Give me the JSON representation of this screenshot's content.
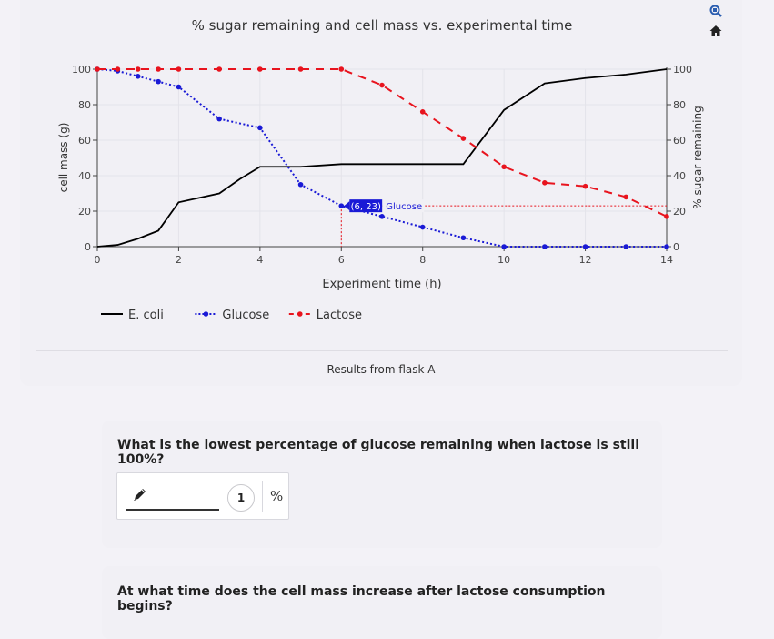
{
  "chart_data": {
    "type": "line",
    "title": "% sugar remaining and cell mass vs. experimental time",
    "xlabel": "Experiment time (h)",
    "ylabel_left": "cell mass (g)",
    "ylabel_right": "% sugar remaining",
    "xlim": [
      0,
      14
    ],
    "ylim_left": [
      0,
      100
    ],
    "ylim_right": [
      0,
      100
    ],
    "x_ticks": [
      0,
      2,
      4,
      6,
      8,
      10,
      12,
      14
    ],
    "y_ticks_left": [
      0,
      20,
      40,
      60,
      80,
      100
    ],
    "y_ticks_right": [
      0,
      20,
      40,
      60,
      80,
      100
    ],
    "grid": true,
    "legend_position": "bottom-left",
    "series": [
      {
        "name": "E. coli",
        "axis": "left",
        "color": "#000000",
        "style": "solid",
        "markers": false,
        "x": [
          0,
          0.5,
          1,
          1.5,
          2,
          3,
          3.5,
          4,
          5,
          6,
          7,
          8,
          9,
          10,
          11,
          12,
          13,
          14
        ],
        "y": [
          0,
          1,
          4.5,
          9,
          25,
          30,
          38,
          45,
          45,
          46.5,
          46.5,
          46.5,
          46.5,
          77,
          92,
          95,
          97,
          100
        ]
      },
      {
        "name": "Glucose",
        "axis": "right",
        "color": "#1a1ad6",
        "style": "dotted",
        "markers": true,
        "x": [
          0,
          0.5,
          1,
          1.5,
          2,
          3,
          4,
          5,
          6,
          7,
          8,
          9,
          10,
          11,
          12,
          13,
          14
        ],
        "y": [
          100,
          99,
          96,
          93,
          90,
          72,
          67,
          35,
          23,
          17,
          11,
          5,
          0,
          0,
          0,
          0,
          0
        ]
      },
      {
        "name": "Lactose",
        "axis": "right",
        "color": "#e8141e",
        "style": "dashed",
        "markers": true,
        "x": [
          0,
          0.5,
          1,
          1.5,
          2,
          3,
          4,
          5,
          6,
          7,
          8,
          9,
          10,
          11,
          12,
          13,
          14
        ],
        "y": [
          100,
          100,
          100,
          100,
          100,
          100,
          100,
          100,
          100,
          91,
          76,
          61,
          45,
          36,
          34,
          28,
          17
        ]
      }
    ],
    "hover": {
      "x": 6,
      "y": 23,
      "label": "(6, 23)",
      "series_name": "Glucose"
    }
  },
  "caption": "Results from flask A",
  "questions": [
    {
      "text": "What is the lowest percentage of glucose remaining when lactose is still 100%?",
      "answer_value": "",
      "badge": "1",
      "unit": "%"
    },
    {
      "text": "At what time does the cell mass increase after lactose consumption begins?"
    }
  ],
  "modebar": {
    "icons": [
      "zoom-icon",
      "home-icon"
    ]
  }
}
